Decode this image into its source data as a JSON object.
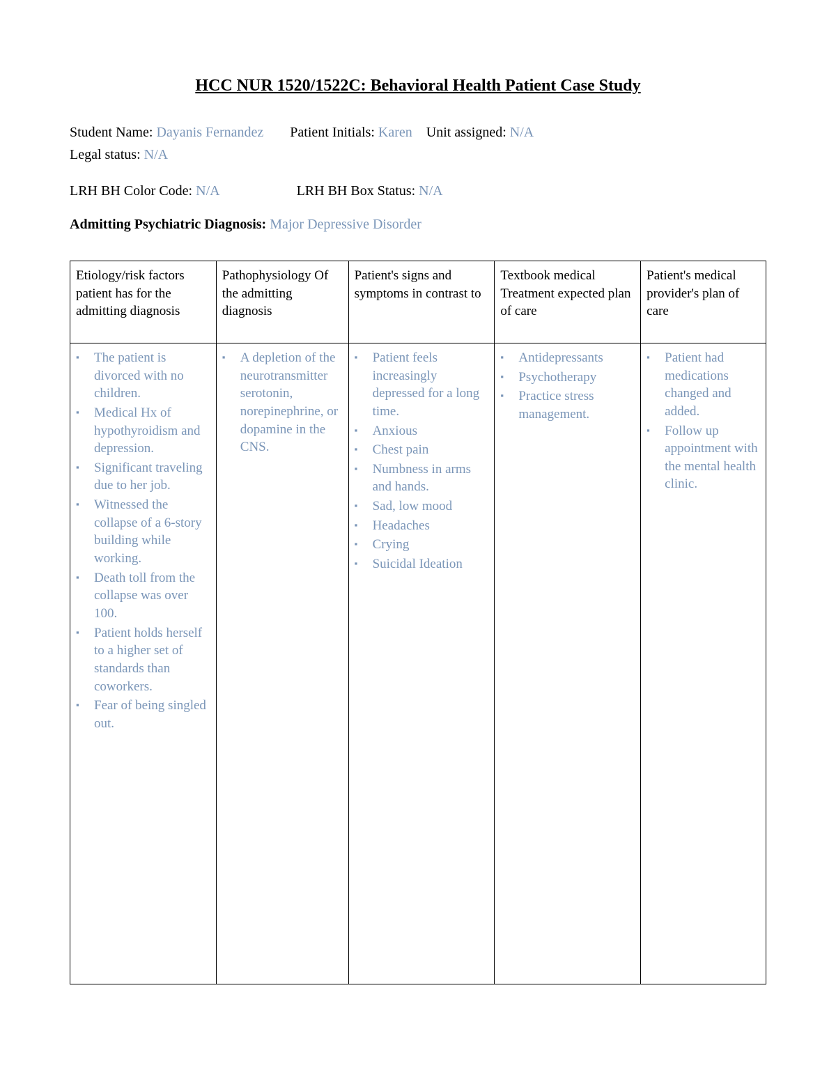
{
  "title": "HCC NUR 1520/1522C: Behavioral Health Patient Case Study",
  "fields": {
    "student_name_label": "Student Name: ",
    "student_name_value": "Dayanis Fernandez",
    "patient_initials_label": "Patient Initials: ",
    "patient_initials_value": "Karen",
    "unit_assigned_label": "Unit assigned: ",
    "unit_assigned_value": "N/A",
    "legal_status_label": "Legal status: ",
    "legal_status_value": "N/A",
    "color_code_label": "LRH BH Color Code: ",
    "color_code_value": "N/A",
    "box_status_label": "LRH BH Box Status: ",
    "box_status_value": "N/A",
    "diagnosis_label": "Admitting Psychiatric Diagnosis: ",
    "diagnosis_value": "Major Depressive Disorder"
  },
  "table": {
    "columns": [
      "Etiology/risk factors patient has for the admitting diagnosis",
      "Pathophysiology Of the admitting diagnosis",
      "Patient's signs and symptoms in contrast to",
      "Textbook medical Treatment expected plan of care",
      "Patient's medical provider's plan of care"
    ],
    "column_widths": [
      "21%",
      "19%",
      "21%",
      "21%",
      "18%"
    ],
    "col0": [
      "The patient is divorced with no children.",
      "Medical Hx of hypothyroidism and depression.",
      "Significant traveling due to her job.",
      "Witnessed the collapse of a 6-story building while working.",
      "Death toll from the collapse was over 100.",
      "Patient holds herself to a higher set of standards than coworkers.",
      "Fear of being singled out."
    ],
    "col1": [
      "A depletion of the neurotransmitter serotonin, norepinephrine, or dopamine in the CNS."
    ],
    "col2": [
      "Patient feels increasingly depressed for a long time.",
      "Anxious",
      "Chest pain",
      "Numbness in arms and hands.",
      "Sad, low mood",
      "Headaches",
      "Crying",
      "Suicidal Ideation"
    ],
    "col3": [
      "Antidepressants",
      "Psychotherapy",
      "Practice stress management."
    ],
    "col4": [
      "Patient had medications changed and added.",
      "Follow up appointment with the mental health clinic."
    ]
  },
  "colors": {
    "text_black": "#000000",
    "text_blue": "#7b96b8",
    "border": "#000000",
    "background": "#ffffff"
  }
}
